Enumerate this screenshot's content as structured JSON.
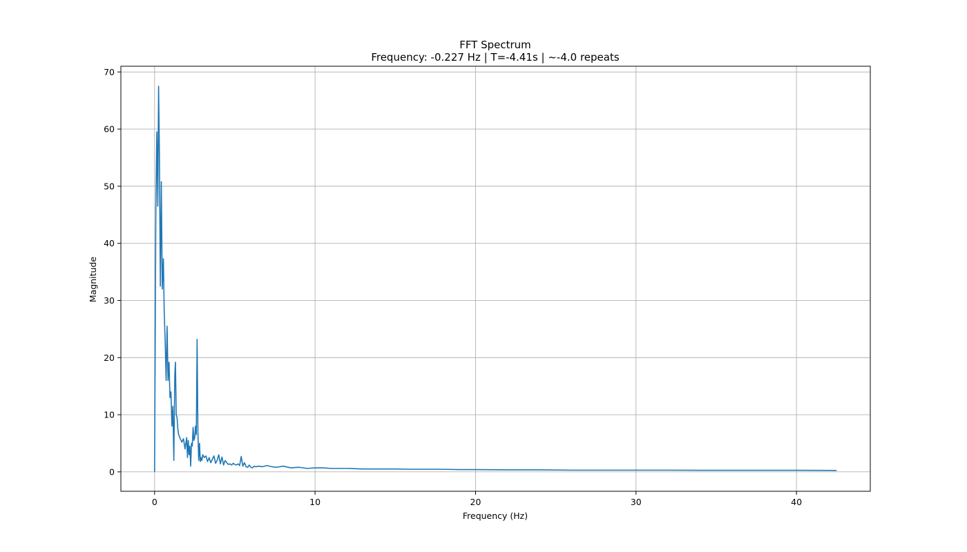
{
  "chart_data": {
    "type": "line",
    "title": "FFT Spectrum",
    "subtitle": "Frequency: -0.227 Hz | T=-4.41s | ~-4.0 repeats",
    "xlabel": "Frequency (Hz)",
    "ylabel": "Magnitude",
    "xlim": [
      -2.1,
      44.6
    ],
    "ylim": [
      -3.4,
      71.0
    ],
    "xticks": [
      0,
      10,
      20,
      30,
      40
    ],
    "yticks": [
      0,
      10,
      20,
      30,
      40,
      50,
      60,
      70
    ],
    "grid": true,
    "line_color": "#1f77b4",
    "series": [
      {
        "x": [
          0.0,
          0.08,
          0.14,
          0.2,
          0.25,
          0.3,
          0.36,
          0.42,
          0.48,
          0.55,
          0.6,
          0.66,
          0.72,
          0.78,
          0.84,
          0.9,
          0.96,
          1.02,
          1.08,
          1.14,
          1.2,
          1.26,
          1.3,
          1.35,
          1.4,
          1.45,
          1.5,
          1.6,
          1.7,
          1.8,
          1.9,
          2.0,
          2.05,
          2.1,
          2.15,
          2.2,
          2.25,
          2.3,
          2.35,
          2.4,
          2.45,
          2.5,
          2.55,
          2.6,
          2.65,
          2.7,
          2.75,
          2.8,
          2.85,
          2.9,
          2.95,
          3.0,
          3.1,
          3.2,
          3.3,
          3.4,
          3.5,
          3.6,
          3.7,
          3.8,
          3.9,
          4.0,
          4.1,
          4.2,
          4.3,
          4.4,
          4.5,
          4.6,
          4.7,
          4.8,
          4.9,
          5.0,
          5.1,
          5.2,
          5.3,
          5.4,
          5.5,
          5.6,
          5.7,
          5.8,
          5.9,
          6.0,
          6.1,
          6.2,
          6.3,
          6.5,
          6.7,
          7.0,
          7.3,
          7.6,
          8.0,
          8.5,
          9.0,
          9.5,
          10.0,
          10.5,
          11.0,
          12.0,
          13.0,
          14.0,
          15.0,
          16.0,
          17.0,
          18.0,
          19.0,
          20.0,
          22.0,
          24.0,
          26.0,
          28.0,
          30.0,
          32.0,
          34.0,
          36.0,
          38.0,
          40.0,
          42.5
        ],
        "y": [
          0.0,
          46.0,
          59.5,
          46.5,
          67.5,
          56.0,
          32.5,
          50.8,
          32.0,
          37.3,
          28.0,
          23.0,
          16.0,
          25.5,
          16.0,
          19.2,
          13.0,
          14.0,
          8.0,
          11.5,
          2.0,
          17.0,
          19.2,
          10.0,
          9.5,
          7.5,
          6.5,
          5.8,
          5.2,
          5.8,
          4.0,
          6.0,
          2.5,
          5.5,
          3.0,
          4.5,
          1.0,
          5.0,
          4.5,
          7.8,
          5.5,
          6.0,
          8.0,
          6.5,
          23.2,
          7.0,
          2.0,
          5.0,
          1.8,
          2.5,
          2.0,
          3.0,
          2.5,
          2.8,
          1.8,
          2.5,
          1.6,
          2.2,
          2.8,
          1.5,
          2.0,
          3.0,
          1.4,
          2.6,
          1.2,
          2.0,
          1.6,
          1.3,
          1.4,
          1.2,
          1.5,
          1.3,
          1.2,
          1.4,
          1.1,
          2.7,
          1.0,
          1.6,
          0.9,
          0.8,
          1.2,
          0.8,
          0.7,
          1.0,
          0.9,
          1.0,
          0.9,
          1.1,
          0.9,
          0.8,
          1.0,
          0.7,
          0.8,
          0.6,
          0.7,
          0.7,
          0.6,
          0.6,
          0.5,
          0.5,
          0.5,
          0.45,
          0.45,
          0.45,
          0.4,
          0.4,
          0.35,
          0.35,
          0.3,
          0.3,
          0.3,
          0.3,
          0.28,
          0.28,
          0.27,
          0.27,
          0.25
        ]
      }
    ]
  }
}
